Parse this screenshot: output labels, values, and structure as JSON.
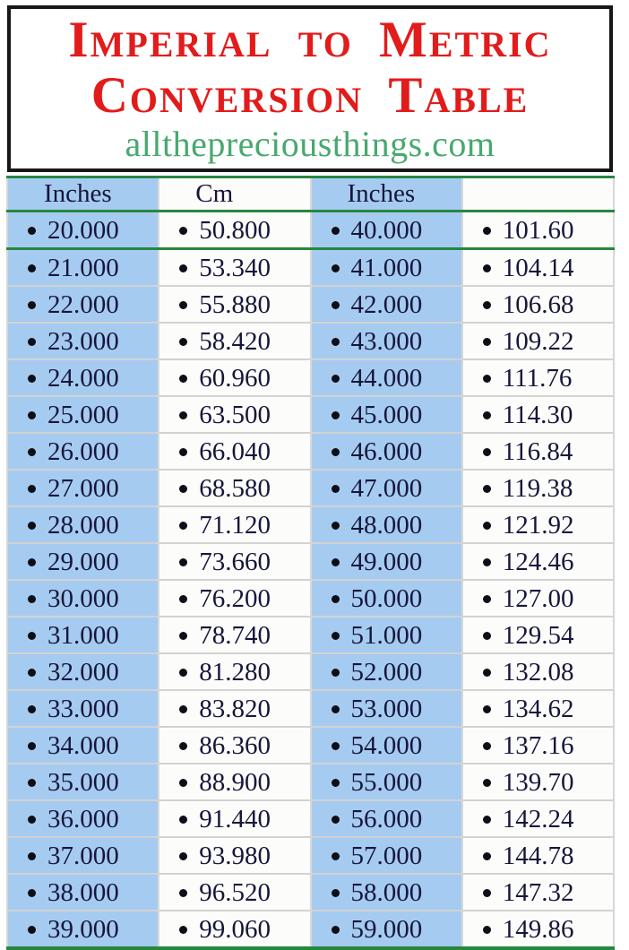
{
  "header": {
    "title_line1": "Imperial to Metric",
    "title_line2": "Conversion Table",
    "website": "allthepreciousthings.com"
  },
  "table": {
    "columns": [
      "Inches",
      "Cm",
      "Inches",
      ""
    ],
    "bullet": "•",
    "rows": [
      [
        "20.000",
        "50.800",
        "40.000",
        "101.60"
      ],
      [
        "21.000",
        "53.340",
        "41.000",
        "104.14"
      ],
      [
        "22.000",
        "55.880",
        "42.000",
        "106.68"
      ],
      [
        "23.000",
        "58.420",
        "43.000",
        "109.22"
      ],
      [
        "24.000",
        "60.960",
        "44.000",
        "111.76"
      ],
      [
        "25.000",
        "63.500",
        "45.000",
        "114.30"
      ],
      [
        "26.000",
        "66.040",
        "46.000",
        "116.84"
      ],
      [
        "27.000",
        "68.580",
        "47.000",
        "119.38"
      ],
      [
        "28.000",
        "71.120",
        "48.000",
        "121.92"
      ],
      [
        "29.000",
        "73.660",
        "49.000",
        "124.46"
      ],
      [
        "30.000",
        "76.200",
        "50.000",
        "127.00"
      ],
      [
        "31.000",
        "78.740",
        "51.000",
        "129.54"
      ],
      [
        "32.000",
        "81.280",
        "52.000",
        "132.08"
      ],
      [
        "33.000",
        "83.820",
        "53.000",
        "134.62"
      ],
      [
        "34.000",
        "86.360",
        "54.000",
        "137.16"
      ],
      [
        "35.000",
        "88.900",
        "55.000",
        "139.70"
      ],
      [
        "36.000",
        "91.440",
        "56.000",
        "142.24"
      ],
      [
        "37.000",
        "93.980",
        "57.000",
        "144.78"
      ],
      [
        "38.000",
        "96.520",
        "58.000",
        "147.32"
      ],
      [
        "39.000",
        "99.060",
        "59.000",
        "149.86"
      ]
    ]
  },
  "colors": {
    "title_red": "#e21b1b",
    "website_green": "#47a96e",
    "accent_line_green": "#268740",
    "cell_blue": "#a6cbf0",
    "cell_white": "#fcfcfa",
    "text_navy": "#16163b",
    "border_black": "#161616",
    "separator_gray": "#d2d2d2"
  }
}
